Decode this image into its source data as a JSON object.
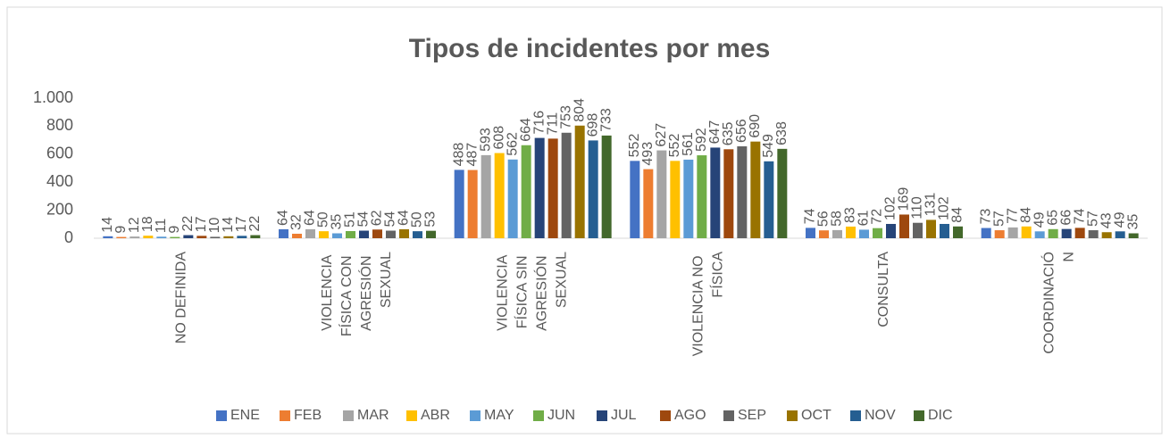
{
  "chart_data": {
    "type": "bar",
    "title": "Tipos de incidentes por mes",
    "categories": [
      "NO DEFINIDA",
      "VIOLENCIA FÍSICA CON AGRESIÓN SEXUAL",
      "VIOLENCIA FÍSICA SIN AGRESIÓN SEXUAL",
      "VIOLENCIA NO FÍSICA",
      "CONSULTA",
      "COORDINACIÓN"
    ],
    "series": [
      {
        "name": "ENE",
        "color": "#4472c4",
        "values": [
          14,
          64,
          488,
          552,
          74,
          73
        ]
      },
      {
        "name": "FEB",
        "color": "#ed7d31",
        "values": [
          9,
          32,
          487,
          493,
          56,
          57
        ]
      },
      {
        "name": "MAR",
        "color": "#a5a5a5",
        "values": [
          12,
          64,
          593,
          627,
          58,
          77
        ]
      },
      {
        "name": "ABR",
        "color": "#ffc000",
        "values": [
          18,
          50,
          608,
          552,
          83,
          84
        ]
      },
      {
        "name": "MAY",
        "color": "#5b9bd5",
        "values": [
          11,
          35,
          562,
          561,
          61,
          49
        ]
      },
      {
        "name": "JUN",
        "color": "#70ad47",
        "values": [
          9,
          51,
          664,
          592,
          72,
          65
        ]
      },
      {
        "name": "JUL",
        "color": "#264478",
        "values": [
          22,
          54,
          716,
          647,
          102,
          66
        ]
      },
      {
        "name": "AGO",
        "color": "#9e480e",
        "values": [
          17,
          62,
          711,
          635,
          169,
          74
        ]
      },
      {
        "name": "SEP",
        "color": "#636363",
        "values": [
          10,
          54,
          753,
          656,
          110,
          57
        ]
      },
      {
        "name": "OCT",
        "color": "#997300",
        "values": [
          14,
          64,
          804,
          690,
          131,
          43
        ]
      },
      {
        "name": "NOV",
        "color": "#255e91",
        "values": [
          17,
          50,
          698,
          549,
          102,
          49
        ]
      },
      {
        "name": "DIC",
        "color": "#43682b",
        "values": [
          22,
          53,
          733,
          638,
          84,
          35
        ]
      }
    ],
    "ylim": [
      0,
      1000
    ],
    "yticks": [
      0,
      200,
      400,
      600,
      800,
      {
        "value": 1000,
        "label": "1.000"
      }
    ],
    "grid": false,
    "legend": "bottom"
  }
}
